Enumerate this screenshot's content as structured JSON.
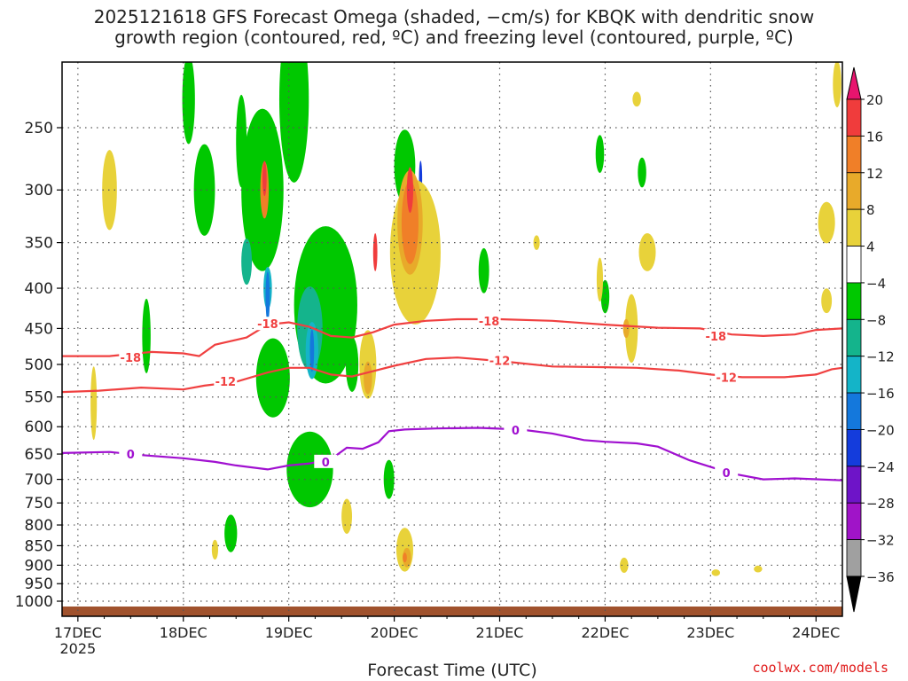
{
  "title": {
    "line1": "2025121618 GFS Forecast Omega (shaded, −cm/s) for KBQK with dendritic snow",
    "line2": "growth region (contoured, red, ºC) and freezing level (contoured, purple, ºC)"
  },
  "credit": "coolwx.com/models",
  "chart_data": {
    "type": "heatmap",
    "xlabel": "Forecast Time (UTC)",
    "ylabel": "",
    "x_ticks": [
      "17DEC",
      "18DEC",
      "19DEC",
      "20DEC",
      "21DEC",
      "22DEC",
      "23DEC",
      "24DEC"
    ],
    "x_tick_sublabel": "2025",
    "y_ticks": [
      250,
      300,
      350,
      400,
      450,
      500,
      550,
      600,
      650,
      700,
      750,
      800,
      850,
      900,
      950,
      1000
    ],
    "y_scale": "log-pressure",
    "y_inverted": true,
    "ylim": [
      1020,
      200
    ],
    "xlim_days_dec": [
      16.85,
      24.25
    ],
    "grid": true,
    "colorbar": {
      "labels": [
        "20",
        "16",
        "12",
        "8",
        "4",
        "−4",
        "−8",
        "−12",
        "−16",
        "−20",
        "−24",
        "−28",
        "−32",
        "−36"
      ],
      "colors": [
        "#e8146e",
        "#f03c3c",
        "#f07f28",
        "#e8aa2a",
        "#e8d23a",
        "#ffffff",
        "#00c800",
        "#14b48c",
        "#14b4c8",
        "#1478dc",
        "#143cdc",
        "#6e14c8",
        "#a014c8",
        "#a0a0a0",
        "#000000"
      ]
    },
    "series": [
      {
        "label": "-18",
        "color": "#f04040",
        "points": [
          [
            16.85,
            488
          ],
          [
            17.3,
            488
          ],
          [
            17.7,
            482
          ],
          [
            18.0,
            484
          ],
          [
            18.15,
            488
          ],
          [
            18.3,
            472
          ],
          [
            18.6,
            462
          ],
          [
            18.8,
            445
          ],
          [
            19.0,
            442
          ],
          [
            19.2,
            448
          ],
          [
            19.4,
            460
          ],
          [
            19.6,
            462
          ],
          [
            19.8,
            455
          ],
          [
            20.0,
            445
          ],
          [
            20.3,
            440
          ],
          [
            20.6,
            438
          ],
          [
            21.0,
            438
          ],
          [
            21.5,
            440
          ],
          [
            22.0,
            445
          ],
          [
            22.5,
            449
          ],
          [
            22.9,
            450
          ],
          [
            23.2,
            458
          ],
          [
            23.5,
            460
          ],
          [
            23.8,
            458
          ],
          [
            24.0,
            452
          ],
          [
            24.25,
            450
          ]
        ],
        "labels": [
          [
            17.5,
            490
          ],
          [
            18.8,
            444
          ],
          [
            20.9,
            440
          ],
          [
            23.05,
            460
          ]
        ]
      },
      {
        "label": "-12",
        "color": "#f04040",
        "points": [
          [
            16.85,
            542
          ],
          [
            17.2,
            540
          ],
          [
            17.6,
            535
          ],
          [
            18.0,
            538
          ],
          [
            18.2,
            532
          ],
          [
            18.5,
            526
          ],
          [
            18.8,
            512
          ],
          [
            19.0,
            505
          ],
          [
            19.2,
            505
          ],
          [
            19.4,
            515
          ],
          [
            19.6,
            518
          ],
          [
            19.8,
            510
          ],
          [
            20.0,
            502
          ],
          [
            20.3,
            492
          ],
          [
            20.6,
            490
          ],
          [
            21.0,
            495
          ],
          [
            21.5,
            503
          ],
          [
            22.0,
            504
          ],
          [
            22.3,
            505
          ],
          [
            22.7,
            509
          ],
          [
            23.0,
            515
          ],
          [
            23.3,
            519
          ],
          [
            23.7,
            519
          ],
          [
            24.0,
            515
          ],
          [
            24.15,
            507
          ],
          [
            24.25,
            505
          ]
        ],
        "labels": [
          [
            18.4,
            525
          ],
          [
            21.0,
            494
          ],
          [
            23.15,
            519
          ]
        ]
      },
      {
        "label": "0",
        "color": "#a010d0",
        "points": [
          [
            16.85,
            648
          ],
          [
            17.3,
            646
          ],
          [
            17.6,
            652
          ],
          [
            18.0,
            658
          ],
          [
            18.3,
            665
          ],
          [
            18.5,
            672
          ],
          [
            18.8,
            680
          ],
          [
            19.0,
            672
          ],
          [
            19.2,
            668
          ],
          [
            19.4,
            660
          ],
          [
            19.55,
            638
          ],
          [
            19.7,
            640
          ],
          [
            19.85,
            628
          ],
          [
            19.95,
            608
          ],
          [
            20.1,
            605
          ],
          [
            20.4,
            603
          ],
          [
            20.8,
            602
          ],
          [
            21.2,
            605
          ],
          [
            21.5,
            612
          ],
          [
            21.8,
            624
          ],
          [
            22.0,
            627
          ],
          [
            22.3,
            630
          ],
          [
            22.5,
            636
          ],
          [
            22.8,
            662
          ],
          [
            23.0,
            675
          ],
          [
            23.2,
            688
          ],
          [
            23.5,
            700
          ],
          [
            23.8,
            698
          ],
          [
            24.25,
            702
          ]
        ],
        "labels": [
          [
            17.5,
            650
          ],
          [
            19.35,
            665
          ],
          [
            21.15,
            606
          ],
          [
            23.15,
            686
          ]
        ]
      }
    ]
  }
}
